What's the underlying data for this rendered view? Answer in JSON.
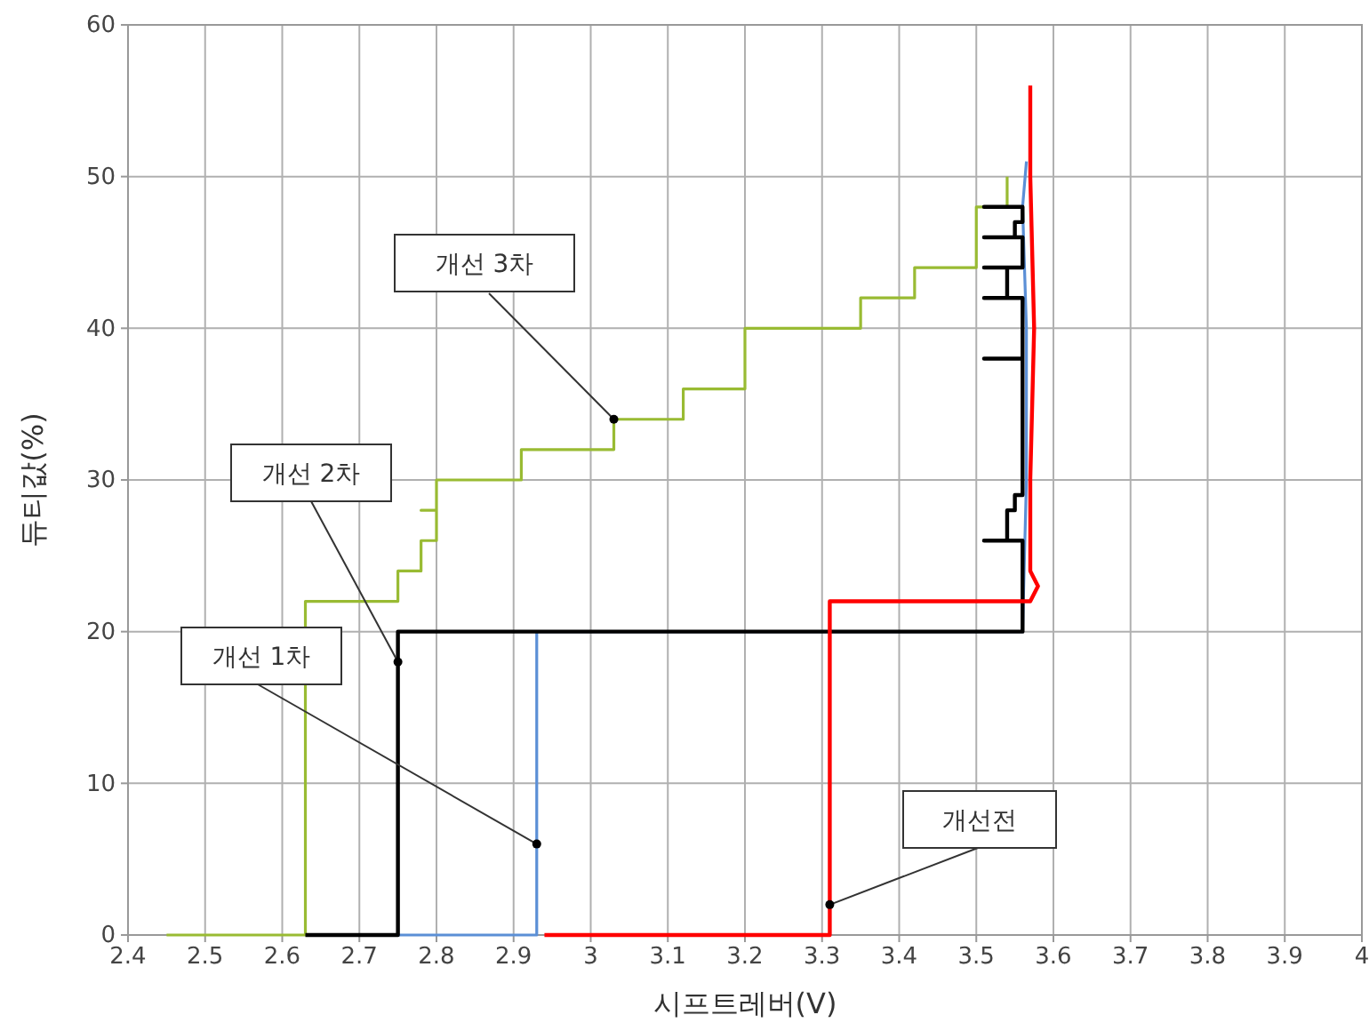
{
  "chart_data": {
    "type": "line",
    "xlabel": "시프트레버(V)",
    "ylabel": "듀티값(%)",
    "xlim": [
      2.4,
      4
    ],
    "ylim": [
      0,
      60
    ],
    "xticks": [
      2.4,
      2.5,
      2.6,
      2.7,
      2.8,
      2.9,
      3,
      3.1,
      3.2,
      3.3,
      3.4,
      3.5,
      3.6,
      3.7,
      3.8,
      3.9,
      4
    ],
    "yticks": [
      0,
      10,
      20,
      30,
      40,
      50,
      60
    ],
    "grid": true,
    "marker": "none",
    "line_style": "solid",
    "series": [
      {
        "color": "#99bb33",
        "x": [
          2.45,
          2.63,
          2.63,
          2.75,
          2.75,
          2.78,
          2.78,
          2.8,
          2.8,
          2.78,
          2.8,
          2.8,
          2.82,
          2.82,
          2.91,
          2.91,
          3.03,
          3.03,
          3.12,
          3.12,
          3.2,
          3.2,
          3.35,
          3.35,
          3.42,
          3.42,
          3.5,
          3.5,
          3.54,
          3.54
        ],
        "values": [
          0,
          0,
          22,
          22,
          24,
          24,
          26,
          26,
          28,
          28,
          28,
          30,
          30,
          30,
          30,
          32,
          32,
          34,
          34,
          36,
          36,
          40,
          40,
          42,
          42,
          44,
          44,
          48,
          48,
          50
        ]
      },
      {
        "color": "#5b8fd6",
        "x": [
          2.75,
          2.93,
          2.93,
          3.56,
          3.565,
          3.565,
          3.56,
          3.565
        ],
        "values": [
          0,
          0,
          20,
          20,
          30,
          40,
          48,
          51
        ]
      },
      {
        "color": "#000000",
        "x": [
          2.63,
          2.75,
          2.75,
          3.56,
          3.56,
          3.51,
          3.54,
          3.54,
          3.55,
          3.55,
          3.56,
          3.56,
          3.51,
          3.56,
          3.56,
          3.51,
          3.54,
          3.54,
          3.51,
          3.56,
          3.56,
          3.51,
          3.55,
          3.55,
          3.56,
          3.56,
          3.51,
          3.56
        ],
        "values": [
          0,
          0,
          20,
          20,
          26,
          26,
          26,
          28,
          28,
          29,
          29,
          38,
          38,
          38,
          42,
          42,
          42,
          44,
          44,
          44,
          46,
          46,
          46,
          47,
          47,
          48,
          48,
          48
        ]
      },
      {
        "color": "#ff0000",
        "x": [
          2.94,
          3.31,
          3.31,
          3.57,
          3.58,
          3.57,
          3.57,
          3.575,
          3.57,
          3.57
        ],
        "values": [
          0,
          0,
          22,
          22,
          23,
          24,
          30,
          40,
          50,
          56
        ]
      }
    ],
    "annotations": [
      {
        "text": "개선 3차",
        "x": 3.03,
        "y": 34
      },
      {
        "text": "개선 2차",
        "x": 2.75,
        "y": 18
      },
      {
        "text": "개선 1차",
        "x": 2.93,
        "y": 6
      },
      {
        "text": "개선전",
        "x": 3.31,
        "y": 2
      }
    ]
  }
}
